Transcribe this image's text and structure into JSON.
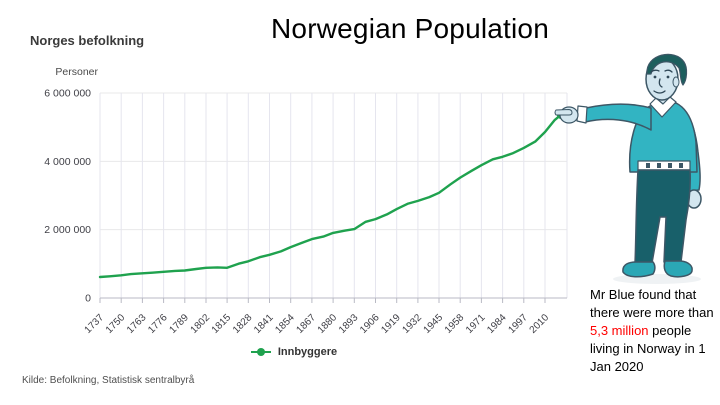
{
  "title": "Norwegian Population",
  "chart": {
    "heading": "Norges befolkning",
    "y_axis_title": "Personer",
    "legend_label": "Innbyggere",
    "source": "Kilde: Befolkning, Statistisk sentralbyrå"
  },
  "annotation": {
    "pre": "Mr Blue found that there were more than ",
    "highlight": "5,3 million",
    "post": " people living in Norway in 1 Jan 2020",
    "highlight_color": "#ff0000"
  },
  "chart_data": {
    "type": "line",
    "title": "Norges befolkning",
    "xlabel": "",
    "ylabel": "Personer",
    "legend_entries": [
      "Innbyggere"
    ],
    "legend_position": "bottom",
    "grid": true,
    "ylim": [
      0,
      6000000
    ],
    "y_ticks": [
      0,
      2000000,
      4000000,
      6000000
    ],
    "y_tick_labels": [
      "0",
      "2 000 000",
      "4 000 000",
      "6 000 000"
    ],
    "x_ticks": [
      1737,
      1750,
      1763,
      1776,
      1789,
      1802,
      1815,
      1828,
      1841,
      1854,
      1867,
      1880,
      1893,
      1906,
      1919,
      1932,
      1945,
      1958,
      1971,
      1984,
      1997,
      2010
    ],
    "series": [
      {
        "name": "Innbyggere",
        "color": "#1fa24e",
        "x": [
          1737,
          1743,
          1750,
          1756,
          1763,
          1769,
          1776,
          1783,
          1789,
          1796,
          1802,
          1809,
          1815,
          1822,
          1828,
          1835,
          1841,
          1848,
          1854,
          1861,
          1867,
          1874,
          1880,
          1887,
          1893,
          1900,
          1906,
          1913,
          1919,
          1926,
          1932,
          1939,
          1945,
          1952,
          1958,
          1965,
          1971,
          1978,
          1984,
          1990,
          1997,
          2004,
          2010,
          2016,
          2020
        ],
        "y": [
          616000,
          635000,
          664000,
          700000,
          723000,
          741000,
          768000,
          793000,
          806000,
          848000,
          883000,
          896000,
          885000,
          1003000,
          1075000,
          1194000,
          1263000,
          1363000,
          1490000,
          1618000,
          1724000,
          1797000,
          1906000,
          1969000,
          2018000,
          2231000,
          2309000,
          2447000,
          2603000,
          2763000,
          2842000,
          2954000,
          3079000,
          3328000,
          3523000,
          3723000,
          3888000,
          4059000,
          4134000,
          4233000,
          4393000,
          4577000,
          4858000,
          5214000,
          5367580
        ]
      }
    ],
    "end_point": {
      "year": 2020,
      "value": 5367580
    }
  }
}
